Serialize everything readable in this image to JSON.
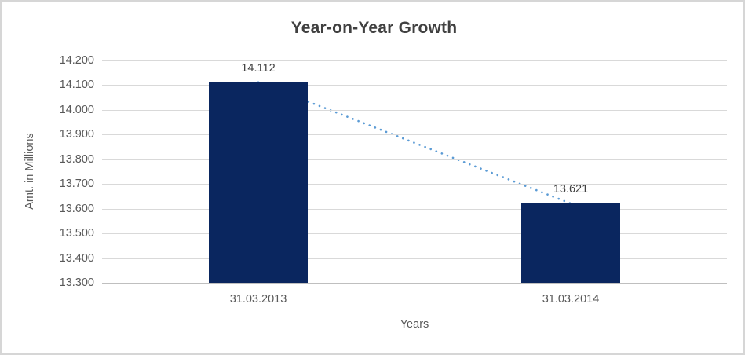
{
  "chart_data": {
    "type": "bar",
    "title": "Year-on-Year Growth",
    "xlabel": "Years",
    "ylabel": "Amt. in Millions",
    "categories": [
      "31.03.2013",
      "31.03.2014"
    ],
    "values": [
      14.112,
      13.621
    ],
    "data_labels": [
      "14.112",
      "13.621"
    ],
    "ylim": [
      13.3,
      14.2
    ],
    "ytick_step": 0.1,
    "ytick_labels": [
      "14.200",
      "14.100",
      "14.000",
      "13.900",
      "13.800",
      "13.700",
      "13.600",
      "13.500",
      "13.400",
      "13.300"
    ],
    "grid": true,
    "legend_position": "none",
    "colors": {
      "bar_fill": "#0A265F",
      "trendline": "#5B9BD5",
      "gridline": "#D9D9D9",
      "title_text": "#404040",
      "axis_text": "#595959",
      "frame_border": "#D6D6D6"
    },
    "trendline": {
      "style": "dotted",
      "from_value": 14.112,
      "to_value": 13.621
    }
  }
}
